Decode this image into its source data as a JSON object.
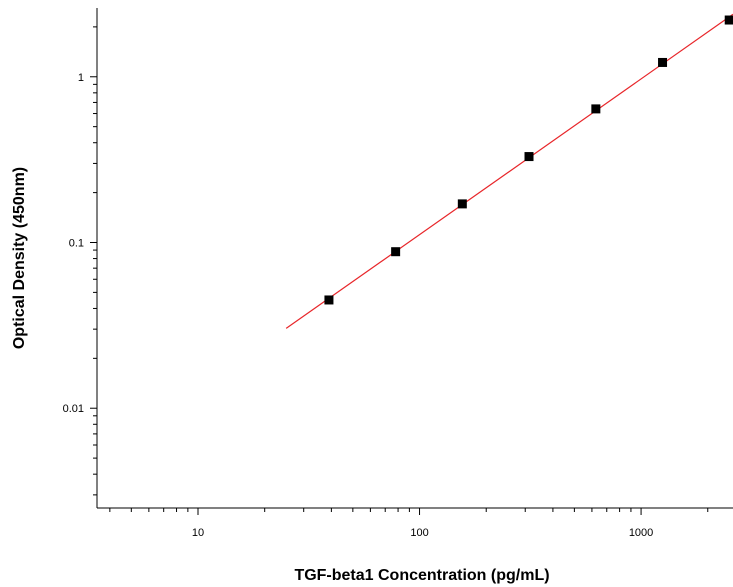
{
  "chart_data": {
    "type": "scatter",
    "xlabel": "TGF-beta1 Concentration (pg/mL)",
    "ylabel": "Optical Density (450nm)",
    "x_scale": "log",
    "y_scale": "log",
    "xlim": [
      3.5,
      2600
    ],
    "ylim": [
      0.0025,
      2.6
    ],
    "x_ticks": [
      {
        "value": 10,
        "label": "10"
      },
      {
        "value": 100,
        "label": "100"
      },
      {
        "value": 1000,
        "label": "1000"
      }
    ],
    "y_ticks": [
      {
        "value": 0.01,
        "label": "0.01"
      },
      {
        "value": 0.1,
        "label": "0.1"
      },
      {
        "value": 1,
        "label": "1"
      }
    ],
    "grid": false,
    "series": [
      {
        "kind": "points",
        "color": "#000000",
        "marker": "square",
        "x": [
          39,
          78,
          156,
          312,
          625,
          1250,
          2500
        ],
        "y": [
          0.045,
          0.088,
          0.171,
          0.33,
          0.64,
          1.22,
          2.2
        ]
      },
      {
        "kind": "fit-line",
        "color": "#e8262a",
        "x_range": [
          25,
          2600
        ]
      }
    ]
  }
}
